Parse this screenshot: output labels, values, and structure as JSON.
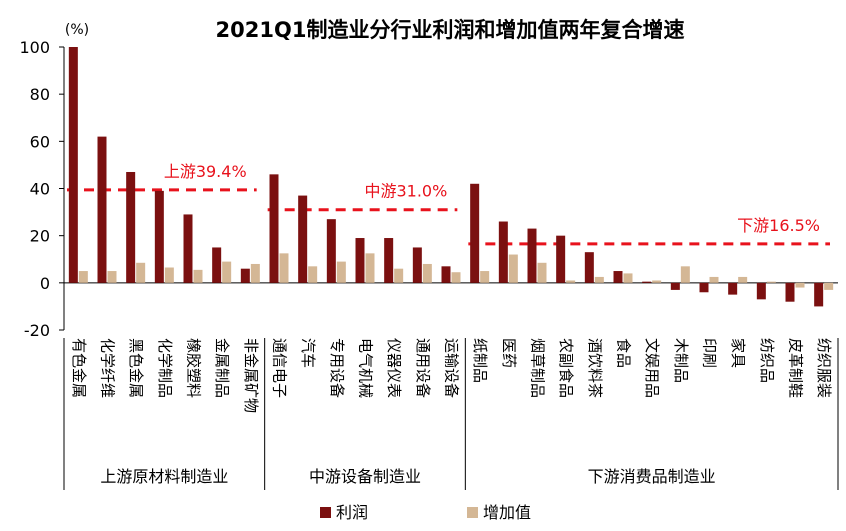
{
  "chart_data": {
    "type": "bar",
    "title": "2021Q1制造业分行业利润和增加值两年复合增速",
    "unit_label": "(%)",
    "ylim": [
      -20,
      100
    ],
    "yticks": [
      -20,
      0,
      20,
      40,
      60,
      80,
      100
    ],
    "categories": [
      "有色金属",
      "化学纤维",
      "黑色金属",
      "化学制品",
      "橡胶塑料",
      "金属制品",
      "非金属矿物",
      "通信电子",
      "汽车",
      "专用设备",
      "电气机械",
      "仪器仪表",
      "通用设备",
      "运输设备",
      "纸制品",
      "医药",
      "烟草制品",
      "农副食品",
      "酒饮料茶",
      "食品",
      "文娱用品",
      "木制品",
      "印刷",
      "家具",
      "纺织品",
      "皮革制鞋",
      "纺织服装"
    ],
    "series": [
      {
        "name": "利润",
        "color": "#7B1010",
        "values": [
          100,
          62,
          47,
          39,
          29,
          15,
          6,
          46,
          37,
          27,
          19,
          19,
          15,
          7,
          42,
          26,
          23,
          20,
          13,
          5,
          0.5,
          -3,
          -4,
          -5,
          -7,
          -8,
          -10
        ]
      },
      {
        "name": "增加值",
        "color": "#D4B795",
        "values": [
          5,
          5,
          8.5,
          6.5,
          5.5,
          9,
          8,
          12.5,
          7,
          9,
          12.5,
          6,
          8,
          4.5,
          5,
          12,
          8.5,
          1,
          2.5,
          4,
          1,
          7,
          2.5,
          2.5,
          0.5,
          -2,
          -3
        ]
      }
    ],
    "groups": [
      {
        "label": "上游原材料制造业",
        "count": 7,
        "avg_label": "上游39.4%",
        "avg": 39.4
      },
      {
        "label": "中游设备制造业",
        "count": 7,
        "avg_label": "中游31.0%",
        "avg": 31.0
      },
      {
        "label": "下游消费品制造业",
        "count": 13,
        "avg_label": "下游16.5%",
        "avg": 16.5
      }
    ],
    "avg_line_color": "#E8121C",
    "legend_position": "bottom-left",
    "grid": false
  }
}
